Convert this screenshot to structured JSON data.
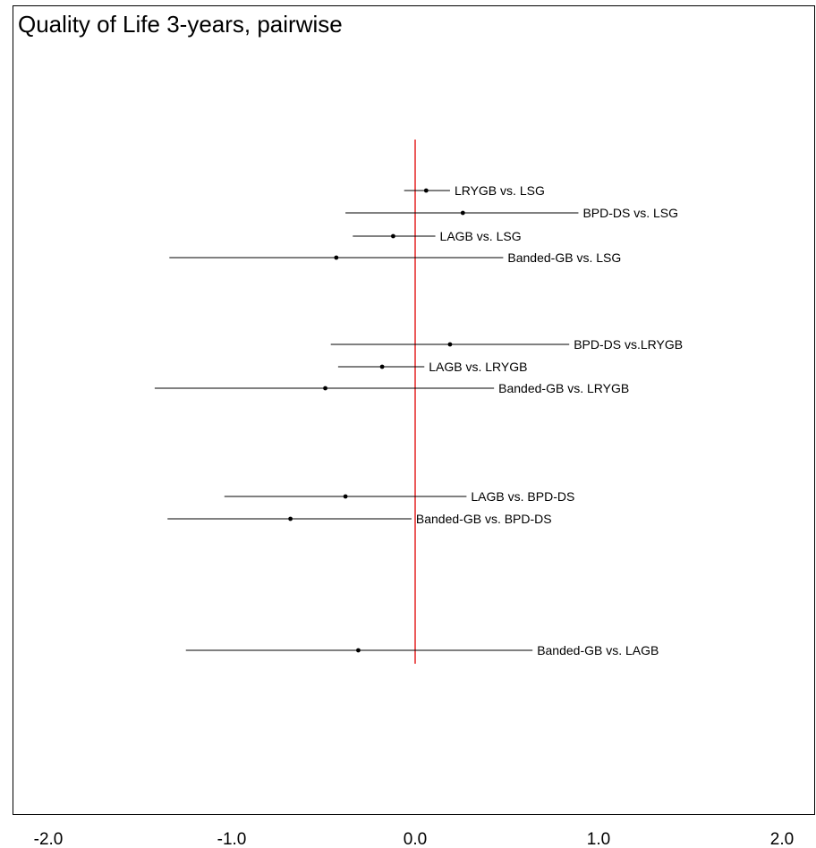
{
  "chart_data": {
    "type": "forest",
    "title": "Quality of Life 3-years, pairwise",
    "xlabel": "",
    "ylabel": "",
    "xlim": [
      -2.2,
      2.2
    ],
    "x_ticks": [
      -2.0,
      -1.0,
      0.0,
      1.0,
      2.0
    ],
    "x_tick_labels": [
      "-2.0",
      "-1.0",
      "0.0",
      "1.0",
      "2.0"
    ],
    "reference_line": {
      "x": 0.0,
      "color": "#e00000"
    },
    "grid": false,
    "legend": "none",
    "comparisons": [
      {
        "label": "LRYGB vs. LSG",
        "group": 1,
        "estimate": 0.06,
        "lower": -0.06,
        "upper": 0.19
      },
      {
        "label": "BPD-DS vs. LSG",
        "group": 1,
        "estimate": 0.26,
        "lower": -0.38,
        "upper": 0.89
      },
      {
        "label": "LAGB vs. LSG",
        "group": 1,
        "estimate": -0.12,
        "lower": -0.34,
        "upper": 0.11
      },
      {
        "label": "Banded-GB vs. LSG",
        "group": 1,
        "estimate": -0.43,
        "lower": -1.34,
        "upper": 0.48
      },
      {
        "label": "BPD-DS vs.LRYGB",
        "group": 2,
        "estimate": 0.19,
        "lower": -0.46,
        "upper": 0.84
      },
      {
        "label": "LAGB vs. LRYGB",
        "group": 2,
        "estimate": -0.18,
        "lower": -0.42,
        "upper": 0.05
      },
      {
        "label": "Banded-GB vs. LRYGB",
        "group": 2,
        "estimate": -0.49,
        "lower": -1.42,
        "upper": 0.43
      },
      {
        "label": "LAGB vs. BPD-DS",
        "group": 3,
        "estimate": -0.38,
        "lower": -1.04,
        "upper": 0.28
      },
      {
        "label": "Banded-GB vs. BPD-DS",
        "group": 3,
        "estimate": -0.68,
        "lower": -1.35,
        "upper": -0.02
      },
      {
        "label": "Banded-GB vs. LAGB",
        "group": 4,
        "estimate": -0.31,
        "lower": -1.25,
        "upper": 0.64
      }
    ]
  }
}
